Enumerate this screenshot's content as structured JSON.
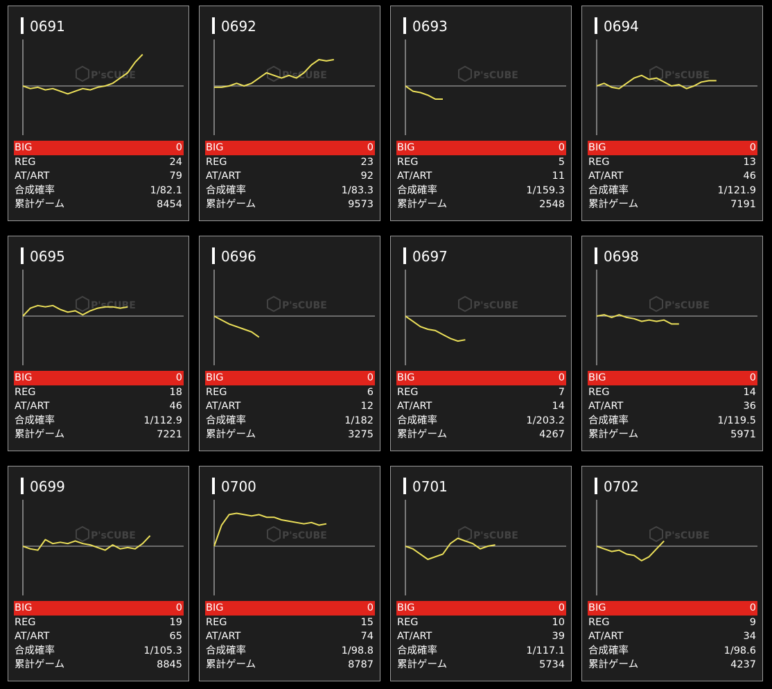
{
  "colors": {
    "background": "#000000",
    "card": "#1e1e1e",
    "line": "#ede15a",
    "big_row": "#e0241c"
  },
  "labels": {
    "big": "BIG",
    "reg": "REG",
    "at_art": "AT/ART",
    "combined": "合成確率",
    "games": "累計ゲーム"
  },
  "watermark": {
    "text": "P'sCUBE",
    "icon": "cube-logo-icon"
  },
  "machines": [
    {
      "id": "0691",
      "big": "0",
      "reg": "24",
      "at_art": "79",
      "combined": "1/82.1",
      "games": "8454",
      "chart_data": {
        "type": "line",
        "values": [
          0,
          -0.1,
          -0.05,
          -0.15,
          -0.1,
          -0.2,
          -0.3,
          -0.2,
          -0.1,
          -0.15,
          -0.05,
          0.0,
          0.1,
          0.3,
          0.5,
          0.9,
          1.2
        ]
      }
    },
    {
      "id": "0692",
      "big": "0",
      "reg": "23",
      "at_art": "92",
      "combined": "1/83.3",
      "games": "9573",
      "chart_data": {
        "type": "line",
        "values": [
          -0.05,
          -0.05,
          0.0,
          0.1,
          0.0,
          0.1,
          0.3,
          0.5,
          0.4,
          0.3,
          0.4,
          0.3,
          0.5,
          0.8,
          1.0,
          0.95,
          1.0
        ]
      }
    },
    {
      "id": "0693",
      "big": "0",
      "reg": "5",
      "at_art": "11",
      "combined": "1/159.3",
      "games": "2548",
      "chart_data": {
        "type": "line",
        "values": [
          0,
          -0.2,
          -0.25,
          -0.35,
          -0.5,
          -0.5
        ]
      }
    },
    {
      "id": "0694",
      "big": "0",
      "reg": "13",
      "at_art": "46",
      "combined": "1/121.9",
      "games": "7191",
      "chart_data": {
        "type": "line",
        "values": [
          0,
          0.1,
          -0.05,
          -0.1,
          0.1,
          0.3,
          0.4,
          0.25,
          0.3,
          0.15,
          0.0,
          0.05,
          -0.1,
          0.0,
          0.15,
          0.2,
          0.2
        ]
      }
    },
    {
      "id": "0695",
      "big": "0",
      "reg": "18",
      "at_art": "46",
      "combined": "1/112.9",
      "games": "7221",
      "chart_data": {
        "type": "line",
        "values": [
          0,
          0.3,
          0.4,
          0.35,
          0.4,
          0.25,
          0.15,
          0.2,
          0.05,
          0.2,
          0.3,
          0.35,
          0.35,
          0.3,
          0.35
        ]
      }
    },
    {
      "id": "0696",
      "big": "0",
      "reg": "6",
      "at_art": "12",
      "combined": "1/182",
      "games": "3275",
      "chart_data": {
        "type": "line",
        "values": [
          0,
          -0.15,
          -0.3,
          -0.4,
          -0.5,
          -0.6,
          -0.8
        ]
      }
    },
    {
      "id": "0697",
      "big": "0",
      "reg": "7",
      "at_art": "14",
      "combined": "1/203.2",
      "games": "4267",
      "chart_data": {
        "type": "line",
        "values": [
          0,
          -0.2,
          -0.4,
          -0.5,
          -0.55,
          -0.7,
          -0.85,
          -0.95,
          -0.9
        ]
      }
    },
    {
      "id": "0698",
      "big": "0",
      "reg": "14",
      "at_art": "36",
      "combined": "1/119.5",
      "games": "5971",
      "chart_data": {
        "type": "line",
        "values": [
          0,
          0.05,
          -0.05,
          0.05,
          -0.05,
          -0.1,
          -0.2,
          -0.15,
          -0.2,
          -0.15,
          -0.3,
          -0.3
        ]
      }
    },
    {
      "id": "0699",
      "big": "0",
      "reg": "19",
      "at_art": "65",
      "combined": "1/105.3",
      "games": "8845",
      "chart_data": {
        "type": "line",
        "values": [
          0,
          -0.1,
          -0.15,
          0.25,
          0.1,
          0.15,
          0.1,
          0.2,
          0.1,
          0.05,
          -0.05,
          -0.15,
          0.05,
          -0.1,
          -0.05,
          -0.1,
          0.1,
          0.4
        ]
      }
    },
    {
      "id": "0700",
      "big": "0",
      "reg": "15",
      "at_art": "74",
      "combined": "1/98.8",
      "games": "8787",
      "chart_data": {
        "type": "line",
        "values": [
          0,
          0.8,
          1.2,
          1.25,
          1.2,
          1.15,
          1.2,
          1.1,
          1.1,
          1.0,
          0.95,
          0.9,
          0.85,
          0.9,
          0.8,
          0.85
        ]
      }
    },
    {
      "id": "0701",
      "big": "0",
      "reg": "10",
      "at_art": "39",
      "combined": "1/117.1",
      "games": "5734",
      "chart_data": {
        "type": "line",
        "values": [
          0,
          -0.1,
          -0.3,
          -0.5,
          -0.4,
          -0.3,
          0.1,
          0.3,
          0.2,
          0.1,
          -0.1,
          0.0,
          0.05
        ]
      }
    },
    {
      "id": "0702",
      "big": "0",
      "reg": "9",
      "at_art": "34",
      "combined": "1/98.6",
      "games": "4237",
      "chart_data": {
        "type": "line",
        "values": [
          0,
          -0.1,
          -0.2,
          -0.15,
          -0.3,
          -0.35,
          -0.55,
          -0.4,
          -0.1,
          0.2
        ]
      }
    }
  ]
}
